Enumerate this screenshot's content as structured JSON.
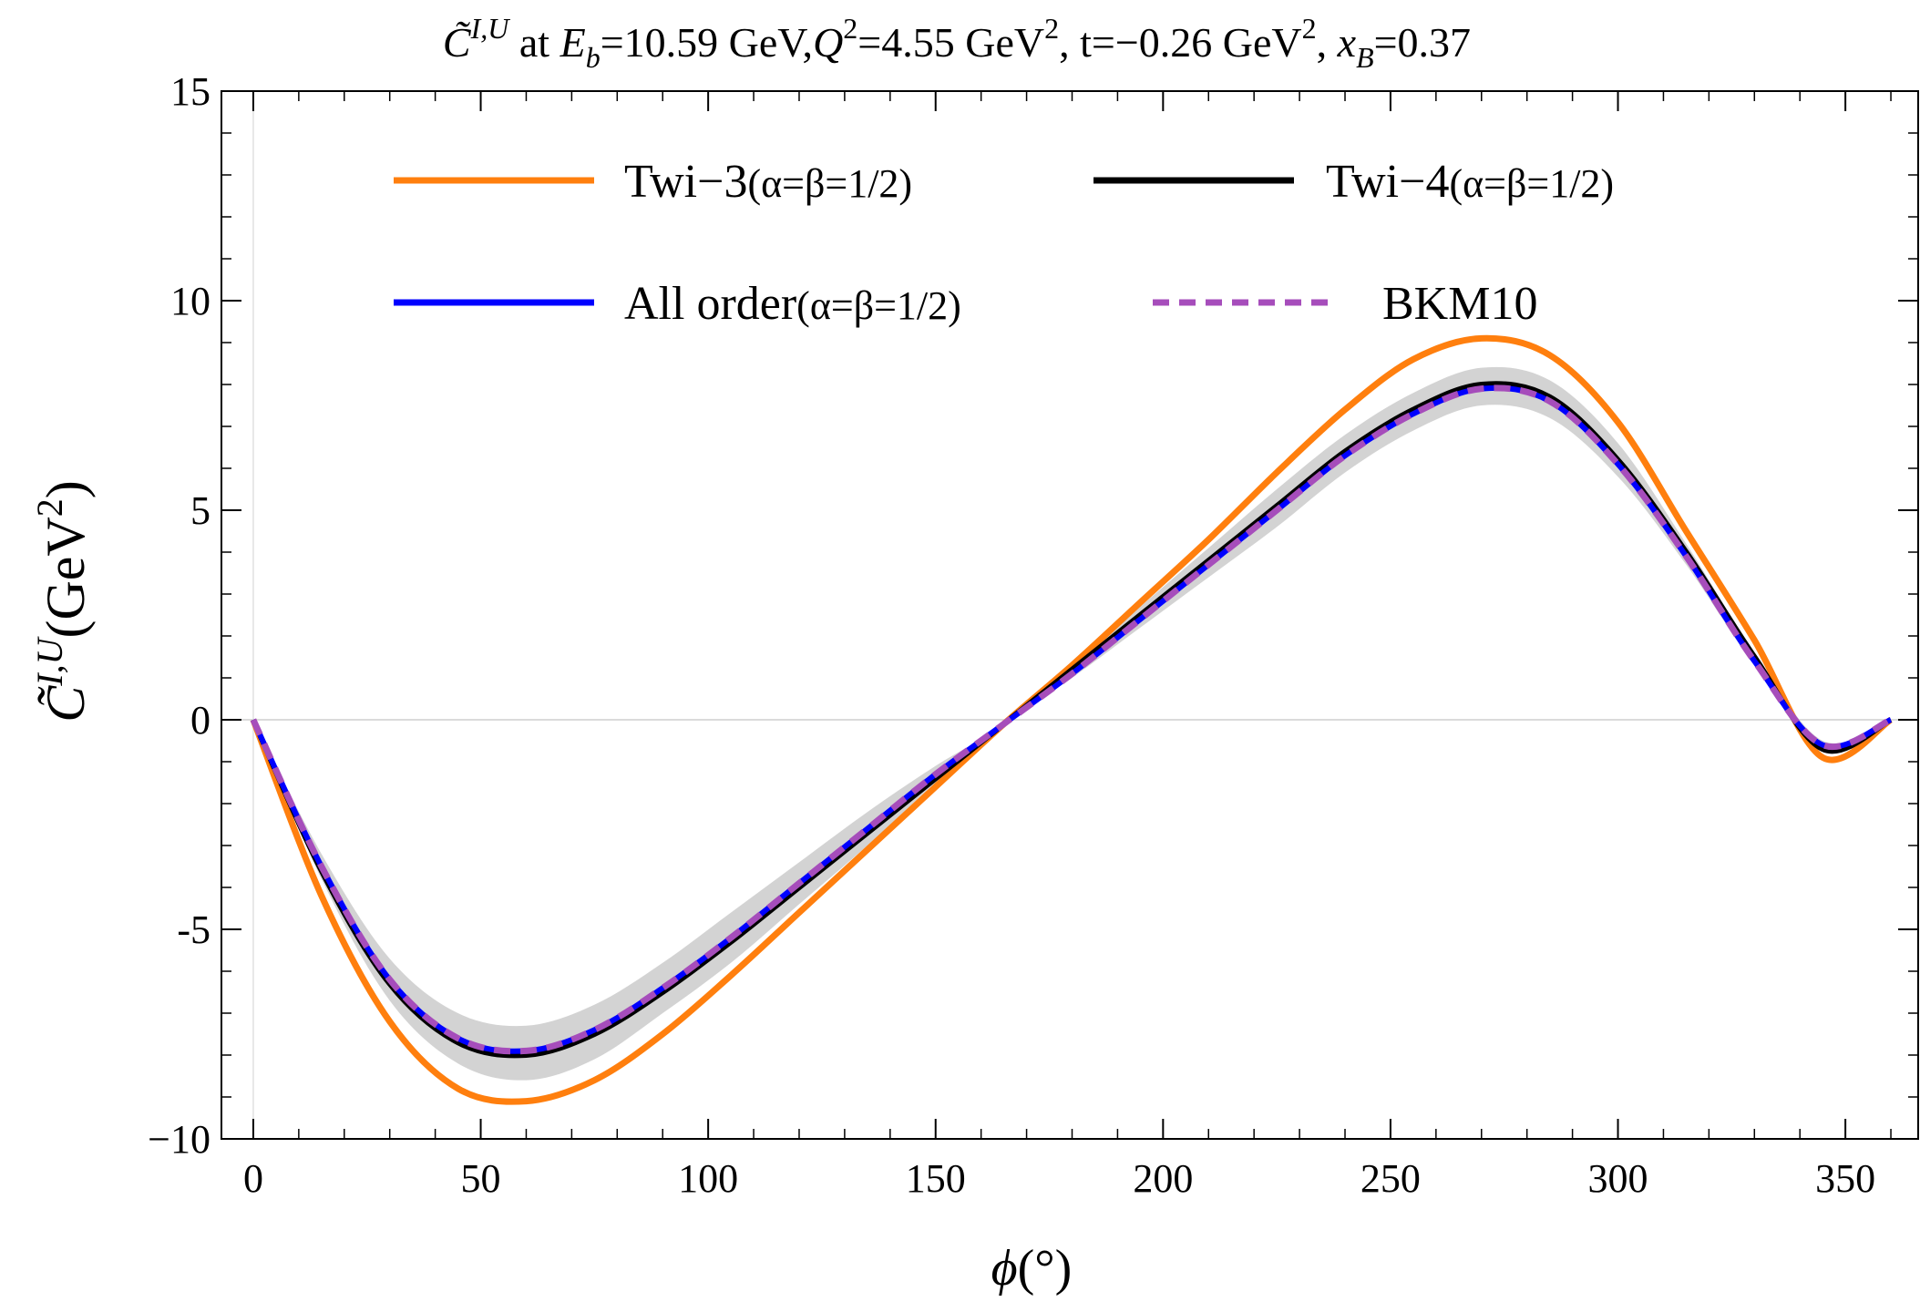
{
  "chart_data": {
    "type": "line",
    "title": {
      "c_sym": "C̃",
      "c_sup": "I,U",
      "at": " at ",
      "e_sym": "E",
      "e_sub": "b",
      "e_val": "=10.59 GeV,",
      "q_sym": "Q",
      "q_sup": "2",
      "q_val": "=4.55 GeV",
      "q_unit_sup": "2",
      "t_part": ", t=−0.26 GeV",
      "t_unit_sup": "2",
      "comma": ", ",
      "x_sym": "x",
      "x_sub": "B",
      "x_val": "=0.37"
    },
    "xlabel": {
      "sym": "ϕ",
      "unit": "(°)"
    },
    "ylabel": {
      "sym": "C̃",
      "sup": "I,U",
      "unit": "(GeV",
      "unit_sup": "2",
      "close": ")"
    },
    "xlim": [
      -7,
      366
    ],
    "ylim": [
      -10,
      15
    ],
    "xticks": [
      0,
      50,
      100,
      150,
      200,
      250,
      300,
      350
    ],
    "xtick_labels": [
      "0",
      "50",
      "100",
      "150",
      "200",
      "250",
      "300",
      "350"
    ],
    "yticks": [
      -10,
      -5,
      0,
      5,
      10,
      15
    ],
    "ytick_labels": [
      "−10",
      "-5",
      "0",
      "5",
      "10",
      "15"
    ],
    "legend_position": "top",
    "x": [
      0,
      15,
      30,
      45,
      60,
      75,
      90,
      105,
      120,
      135,
      150,
      165,
      180,
      195,
      210,
      225,
      240,
      255,
      270,
      285,
      300,
      315,
      330,
      345,
      360
    ],
    "series": [
      {
        "name": "Twi-3",
        "label_main": "Twi−3",
        "label_params": "(α=β=1/2)",
        "color": "#ff7f0e",
        "dash": "solid",
        "values": [
          0,
          -4.2,
          -7.2,
          -8.8,
          -9.1,
          -8.6,
          -7.5,
          -6.1,
          -4.6,
          -3.1,
          -1.6,
          -0.1,
          1.3,
          2.8,
          4.3,
          5.9,
          7.4,
          8.6,
          9.1,
          8.7,
          7.1,
          4.5,
          1.9,
          -0.9,
          0
        ]
      },
      {
        "name": "Twi-4",
        "label_main": "Twi−4",
        "label_params": "(α=β=1/2)",
        "color": "#000000",
        "dash": "solid",
        "values": [
          0,
          -3.6,
          -6.3,
          -7.7,
          -8.0,
          -7.5,
          -6.5,
          -5.3,
          -4.0,
          -2.7,
          -1.4,
          -0.1,
          1.2,
          2.5,
          3.8,
          5.1,
          6.4,
          7.4,
          8.0,
          7.7,
          6.2,
          4.0,
          1.5,
          -0.7,
          0
        ]
      },
      {
        "name": "All order",
        "label_main": "All order",
        "label_params": "(α=β=1/2)",
        "color": "#0000ff",
        "dash": "solid",
        "values": [
          0,
          -3.5,
          -6.2,
          -7.6,
          -7.9,
          -7.4,
          -6.4,
          -5.2,
          -3.9,
          -2.6,
          -1.3,
          -0.1,
          1.1,
          2.4,
          3.7,
          5.0,
          6.3,
          7.3,
          7.9,
          7.6,
          6.1,
          3.9,
          1.4,
          -0.6,
          0
        ]
      },
      {
        "name": "BKM10",
        "label_main": "BKM10",
        "label_params": "",
        "color": "#a64dbb",
        "dash": "dashed",
        "values": [
          0,
          -3.5,
          -6.2,
          -7.6,
          -7.9,
          -7.4,
          -6.4,
          -5.2,
          -3.9,
          -2.6,
          -1.3,
          -0.1,
          1.1,
          2.4,
          3.7,
          5.0,
          6.3,
          7.3,
          7.9,
          7.6,
          6.1,
          3.9,
          1.4,
          -0.6,
          0
        ]
      }
    ],
    "uncertainty_band": {
      "color": "#d3d3d3",
      "lower": [
        0,
        -3.8,
        -6.7,
        -8.2,
        -8.6,
        -8.1,
        -7.0,
        -5.8,
        -4.4,
        -3.0,
        -1.5,
        -0.1,
        1.0,
        2.2,
        3.4,
        4.6,
        5.9,
        6.9,
        7.5,
        7.2,
        5.8,
        3.7,
        1.3,
        -0.6,
        0
      ],
      "upper": [
        0,
        -3.2,
        -5.7,
        -7.0,
        -7.3,
        -6.8,
        -5.8,
        -4.6,
        -3.4,
        -2.2,
        -1.1,
        -0.1,
        1.3,
        2.7,
        4.1,
        5.5,
        6.8,
        7.8,
        8.4,
        8.1,
        6.6,
        4.2,
        1.6,
        -0.5,
        0
      ]
    }
  }
}
